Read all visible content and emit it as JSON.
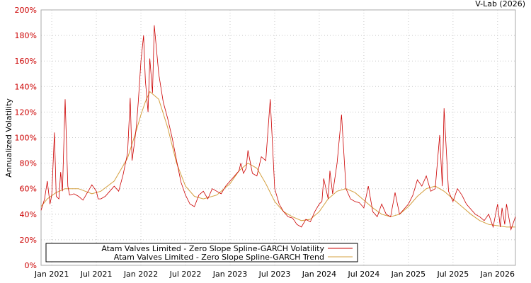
{
  "credit": "V-Lab (2026)",
  "chart_data": {
    "type": "line",
    "title": "",
    "xlabel": "",
    "ylabel": "Annualized Volatility",
    "ylim": [
      0,
      200
    ],
    "yticks": [
      "0%",
      "20%",
      "40%",
      "60%",
      "80%",
      "100%",
      "120%",
      "140%",
      "160%",
      "180%",
      "200%"
    ],
    "xticks": [
      "Jan 2021",
      "Jul 2021",
      "Jan 2022",
      "Jul 2022",
      "Jan 2023",
      "Jul 2023",
      "Jan 2024",
      "Jul 2024",
      "Jan 2025",
      "Jul 2025",
      "Jan 2026"
    ],
    "grid": true,
    "legend_position": "bottom-left",
    "colors": {
      "volatility": "#cc0000",
      "trend": "#d4a040",
      "grid": "#c8c8c8"
    },
    "x_range": [
      2020.88,
      2026.2
    ],
    "series": [
      {
        "name": "Atam Valves Limited - Zero Slope Spline-GARCH Volatility",
        "t": [
          2020.88,
          2020.92,
          2020.95,
          2020.98,
          2021.0,
          2021.03,
          2021.05,
          2021.08,
          2021.1,
          2021.12,
          2021.15,
          2021.18,
          2021.2,
          2021.25,
          2021.3,
          2021.35,
          2021.4,
          2021.45,
          2021.5,
          2021.52,
          2021.55,
          2021.6,
          2021.65,
          2021.7,
          2021.75,
          2021.8,
          2021.85,
          2021.88,
          2021.9,
          2021.93,
          2021.95,
          2021.97,
          2022.0,
          2022.03,
          2022.05,
          2022.08,
          2022.1,
          2022.13,
          2022.15,
          2022.2,
          2022.25,
          2022.3,
          2022.35,
          2022.4,
          2022.45,
          2022.5,
          2022.55,
          2022.6,
          2022.65,
          2022.7,
          2022.75,
          2022.8,
          2022.85,
          2022.9,
          2022.95,
          2023.0,
          2023.05,
          2023.1,
          2023.12,
          2023.15,
          2023.18,
          2023.2,
          2023.25,
          2023.3,
          2023.35,
          2023.4,
          2023.45,
          2023.5,
          2023.55,
          2023.6,
          2023.65,
          2023.7,
          2023.75,
          2023.8,
          2023.85,
          2023.9,
          2023.95,
          2024.0,
          2024.03,
          2024.05,
          2024.1,
          2024.12,
          2024.15,
          2024.2,
          2024.25,
          2024.3,
          2024.35,
          2024.4,
          2024.45,
          2024.5,
          2024.55,
          2024.6,
          2024.65,
          2024.7,
          2024.75,
          2024.8,
          2024.85,
          2024.9,
          2024.95,
          2025.0,
          2025.05,
          2025.1,
          2025.15,
          2025.2,
          2025.25,
          2025.3,
          2025.35,
          2025.38,
          2025.4,
          2025.45,
          2025.5,
          2025.55,
          2025.6,
          2025.65,
          2025.7,
          2025.75,
          2025.8,
          2025.85,
          2025.9,
          2025.95,
          2026.0,
          2026.03,
          2026.05,
          2026.08,
          2026.1,
          2026.15,
          2026.2
        ],
        "values": [
          43,
          52,
          66,
          48,
          55,
          104,
          54,
          52,
          73,
          58,
          130,
          62,
          55,
          56,
          54,
          51,
          57,
          63,
          58,
          52,
          52,
          54,
          58,
          62,
          58,
          71,
          88,
          131,
          82,
          97,
          110,
          128,
          160,
          180,
          145,
          120,
          162,
          135,
          188,
          150,
          128,
          115,
          100,
          82,
          65,
          55,
          48,
          46,
          55,
          58,
          52,
          60,
          58,
          56,
          62,
          66,
          70,
          74,
          80,
          72,
          76,
          90,
          72,
          70,
          85,
          82,
          130,
          60,
          48,
          42,
          38,
          37,
          32,
          30,
          36,
          34,
          42,
          48,
          50,
          68,
          52,
          74,
          56,
          80,
          118,
          60,
          52,
          50,
          49,
          45,
          62,
          42,
          38,
          48,
          40,
          38,
          57,
          40,
          44,
          48,
          55,
          67,
          62,
          70,
          58,
          60,
          102,
          62,
          123,
          58,
          50,
          60,
          55,
          48,
          44,
          40,
          38,
          35,
          40,
          30,
          48,
          30,
          45,
          32,
          48,
          28,
          38
        ]
      },
      {
        "name": "Atam Valves Limited - Zero Slope Spline-GARCH Trend",
        "t": [
          2020.88,
          2020.95,
          2021.05,
          2021.15,
          2021.3,
          2021.45,
          2021.55,
          2021.7,
          2021.85,
          2021.95,
          2022.0,
          2022.05,
          2022.1,
          2022.2,
          2022.3,
          2022.4,
          2022.5,
          2022.6,
          2022.7,
          2022.85,
          2023.0,
          2023.1,
          2023.2,
          2023.3,
          2023.4,
          2023.5,
          2023.6,
          2023.7,
          2023.8,
          2023.9,
          2024.0,
          2024.1,
          2024.2,
          2024.3,
          2024.4,
          2024.5,
          2024.6,
          2024.7,
          2024.8,
          2024.9,
          2025.0,
          2025.1,
          2025.2,
          2025.3,
          2025.4,
          2025.5,
          2025.6,
          2025.7,
          2025.8,
          2025.9,
          2026.0,
          2026.1,
          2026.2
        ],
        "values": [
          46,
          52,
          57,
          60,
          60,
          56,
          58,
          66,
          84,
          106,
          118,
          128,
          136,
          130,
          108,
          80,
          62,
          54,
          52,
          55,
          64,
          74,
          80,
          76,
          64,
          50,
          42,
          38,
          35,
          36,
          42,
          52,
          58,
          60,
          57,
          51,
          45,
          40,
          38,
          40,
          46,
          54,
          60,
          62,
          58,
          52,
          46,
          40,
          35,
          32,
          31,
          30,
          30
        ]
      }
    ]
  }
}
